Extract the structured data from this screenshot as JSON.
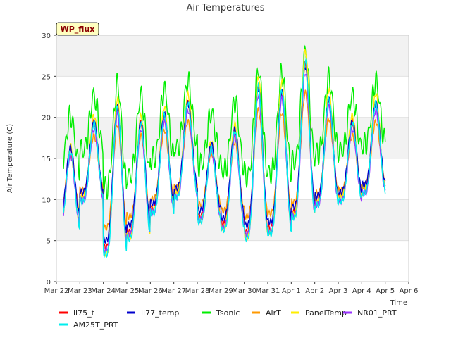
{
  "chart_data": {
    "type": "line",
    "title": "Air Temperatures",
    "xlabel": "Time",
    "ylabel": "Air Temperature (C)",
    "badge": "WP_flux",
    "ylim": [
      0,
      30
    ],
    "yticks": [
      0,
      5,
      10,
      15,
      20,
      25,
      30
    ],
    "xlim": [
      0,
      15
    ],
    "xticks": [
      "Mar 22",
      "Mar 23",
      "Mar 24",
      "Mar 25",
      "Mar 26",
      "Mar 27",
      "Mar 28",
      "Mar 29",
      "Mar 30",
      "Mar 31",
      "Apr 1",
      "Apr 2",
      "Apr 3",
      "Apr 4",
      "Apr 5",
      "Apr 6"
    ],
    "x_start_offset_days": 0.3,
    "x_end_offset_days": 14.0,
    "shaded_bands": [
      [
        5,
        10
      ],
      [
        15,
        20
      ],
      [
        25,
        30
      ]
    ],
    "legend_placement": "bottom",
    "daily_max": [
      16.0,
      19.5,
      21.5,
      19.5,
      20.5,
      22.0,
      16.5,
      18.5,
      24.0,
      23.5,
      27.0,
      22.5,
      19.5,
      22.0
    ],
    "daily_min": [
      6.5,
      10.0,
      3.5,
      5.5,
      8.5,
      10.5,
      7.5,
      6.5,
      5.5,
      6.0,
      8.0,
      9.5,
      10.0,
      11.0
    ],
    "series": [
      {
        "name": "li75_t",
        "color": "#ff0000",
        "offset": 0.2,
        "amp": 0.95
      },
      {
        "name": "li77_temp",
        "color": "#0000cc",
        "offset": 0.6,
        "amp": 0.9
      },
      {
        "name": "Tsonic",
        "color": "#00ee00",
        "offset": 4.0,
        "amp": 0.7
      },
      {
        "name": "AirT",
        "color": "#ff9900",
        "offset": 0.2,
        "amp": 0.7
      },
      {
        "name": "PanelTemp",
        "color": "#ffee00",
        "offset": 0.4,
        "amp": 1.05
      },
      {
        "name": "NR01_PRT",
        "color": "#9933ff",
        "offset": -0.4,
        "amp": 0.92
      },
      {
        "name": "AM25T_PRT",
        "color": "#00eeee",
        "offset": -0.2,
        "amp": 1.0
      }
    ]
  }
}
